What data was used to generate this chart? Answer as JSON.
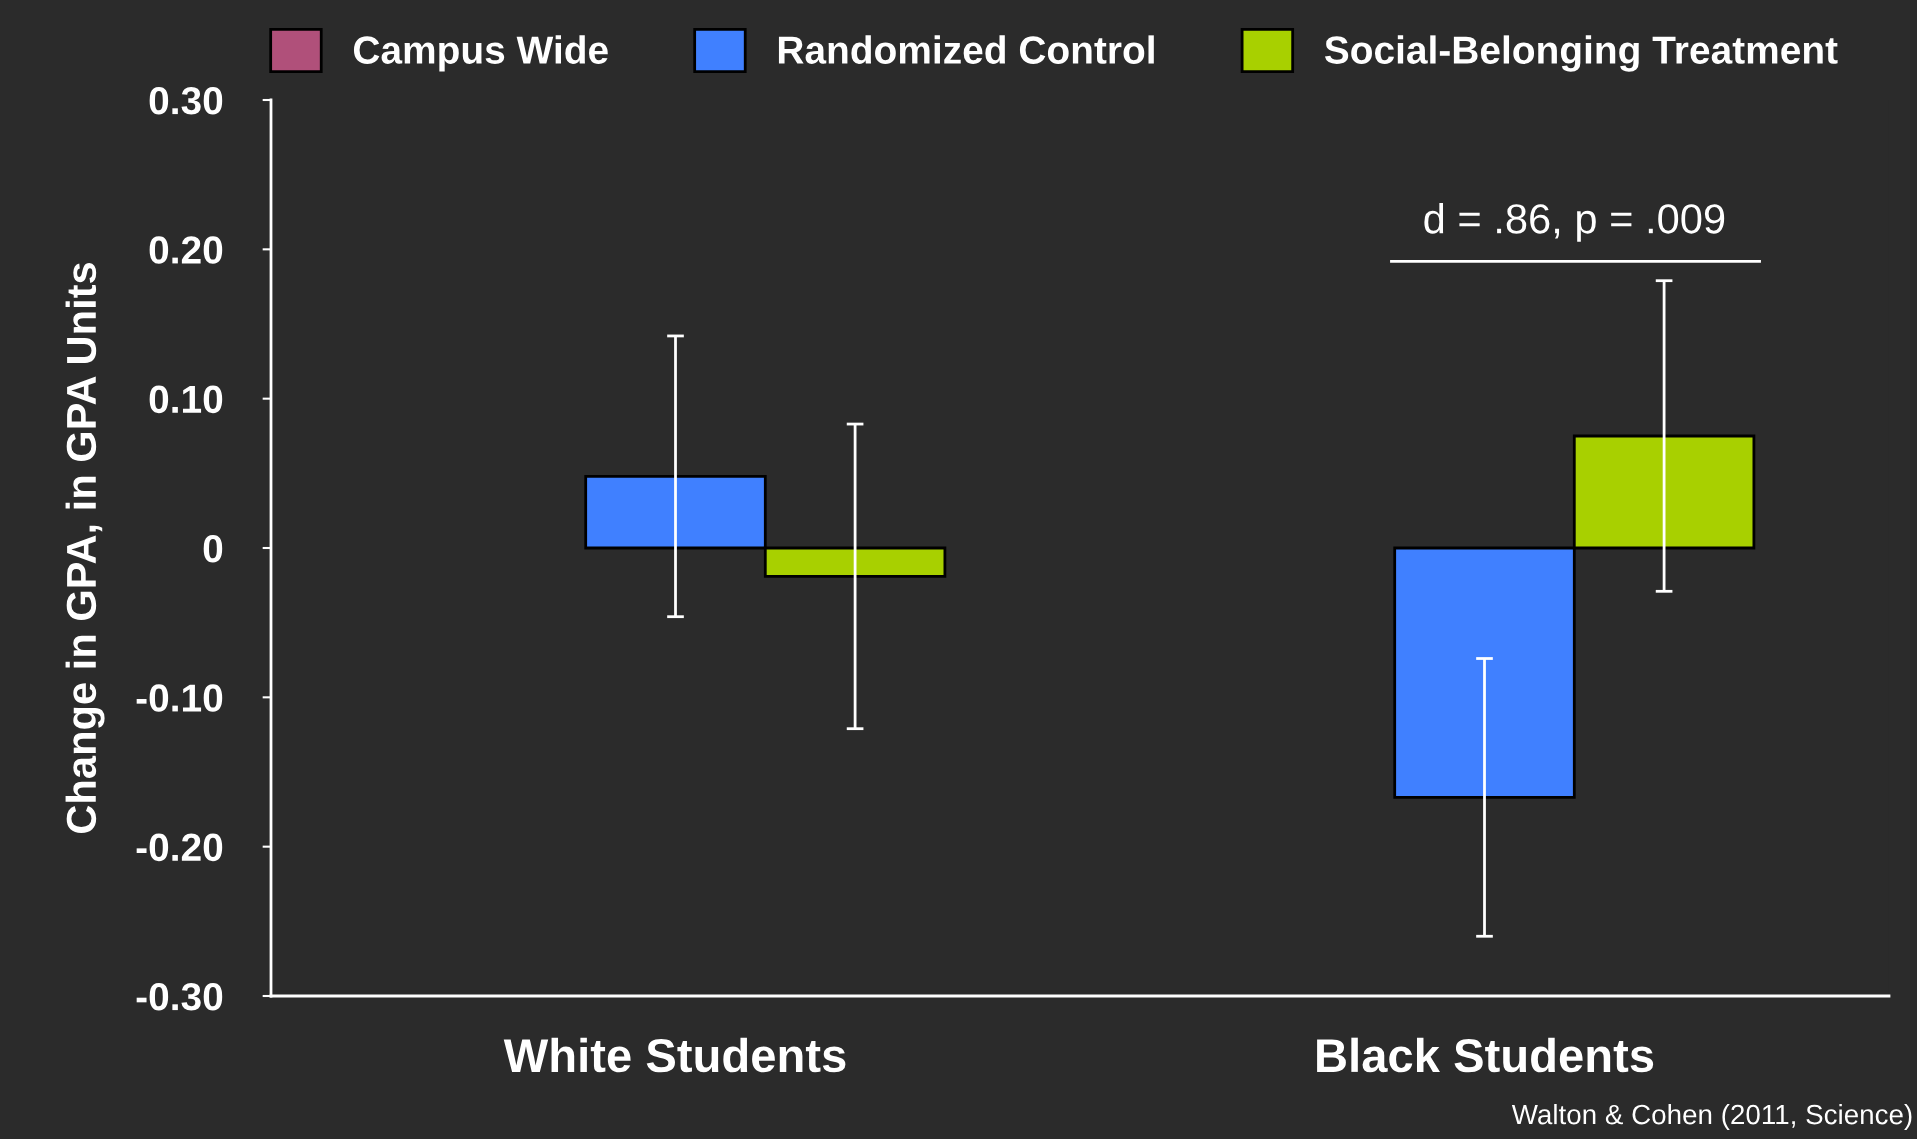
{
  "chart_data": {
    "type": "bar",
    "ylabel": "Change in GPA, in GPA Units",
    "categories": [
      "White Students",
      "Black Students"
    ],
    "series": [
      {
        "name": "Campus Wide",
        "color": "#b0507a",
        "values": [
          null,
          null
        ]
      },
      {
        "name": "Randomized Control",
        "color": "#4080ff",
        "values": [
          0.048,
          -0.167
        ],
        "errors": [
          0.094,
          0.093
        ]
      },
      {
        "name": "Social-Belonging Treatment",
        "color": "#a8d000",
        "values": [
          -0.019,
          0.075
        ],
        "errors": [
          0.102,
          0.104
        ]
      }
    ],
    "ylim": [
      -0.3,
      0.3
    ],
    "yticks": [
      {
        "value": -0.3,
        "label": "-0.30"
      },
      {
        "value": -0.2,
        "label": "-0.20"
      },
      {
        "value": -0.1,
        "label": "-0.10"
      },
      0,
      {
        "value": 0.1,
        "label": "0.10"
      },
      {
        "value": 0.2,
        "label": "0.20"
      },
      {
        "value": 0.3,
        "label": "0.30"
      }
    ],
    "grid": false,
    "legend": "top",
    "annotations": [
      "d = .86, p = .009",
      "Walton & Cohen (2011, Science)"
    ]
  }
}
